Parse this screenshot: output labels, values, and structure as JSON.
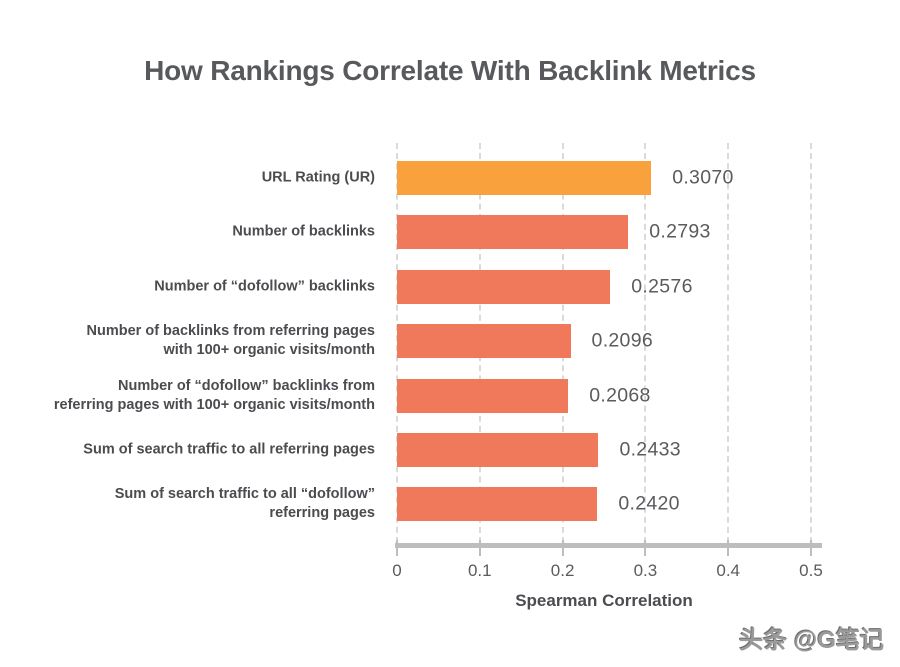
{
  "page": {
    "watermark": "头条 @G笔记"
  },
  "chart_data": {
    "type": "bar",
    "orientation": "horizontal",
    "title": "How Rankings Correlate With Backlink Metrics",
    "xlabel": "Spearman Correlation",
    "xlim": [
      0,
      0.5
    ],
    "x_ticks": [
      0,
      0.1,
      0.2,
      0.3,
      0.4,
      0.5
    ],
    "x_tick_labels": [
      "0",
      "0.1",
      "0.2",
      "0.3",
      "0.4",
      "0.5"
    ],
    "grid": "vertical-dashed",
    "legend": "none",
    "categories": [
      "URL Rating (UR)",
      "Number of backlinks",
      "Number of “dofollow” backlinks",
      "Number of backlinks from referring pages with 100+ organic visits/month",
      "Number of “dofollow” backlinks from referring pages with 100+ organic visits/month",
      "Sum of search traffic to all referring pages",
      "Sum of search traffic to all “dofollow” referring pages"
    ],
    "category_label_lines": [
      [
        "URL Rating (UR)"
      ],
      [
        "Number of backlinks"
      ],
      [
        "Number of “dofollow” backlinks"
      ],
      [
        "Number of backlinks from referring pages",
        "with 100+ organic visits/month"
      ],
      [
        "Number of “dofollow” backlinks from",
        "referring pages with 100+ organic visits/month"
      ],
      [
        "Sum of search traffic to all referring pages"
      ],
      [
        "Sum of search traffic to all “dofollow”",
        "referring pages"
      ]
    ],
    "values": [
      0.307,
      0.2793,
      0.2576,
      0.2096,
      0.2068,
      0.2433,
      0.242
    ],
    "value_labels": [
      "0.3070",
      "0.2793",
      "0.2576",
      "0.2096",
      "0.2068",
      "0.2433",
      "0.2420"
    ],
    "bar_colors": [
      "#F9A13C",
      "#F0795B",
      "#F0795B",
      "#F0795B",
      "#F0795B",
      "#F0795B",
      "#F0795B"
    ],
    "colors": {
      "highlight_bar": "#F9A13C",
      "default_bar": "#F0795B",
      "gridline": "#DADADA",
      "axis": "#BDBDBD",
      "title_text": "#58595D",
      "label_text": "#4B4C50",
      "value_text": "#5A5B5E"
    }
  }
}
